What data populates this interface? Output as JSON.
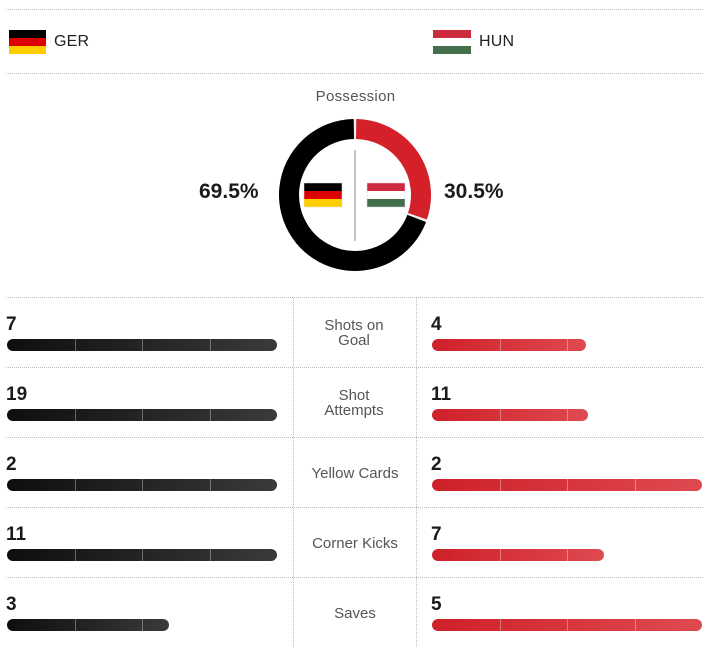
{
  "teams": {
    "home": {
      "name": "GER",
      "flag": "germany-flag",
      "colors": [
        "#000000",
        "#dd0000",
        "#ffce00"
      ]
    },
    "away": {
      "name": "HUN",
      "flag": "hungary-flag",
      "colors": [
        "#cd2a3e",
        "#ffffff",
        "#436f4d"
      ]
    }
  },
  "possession": {
    "title": "Possession",
    "home_pct": "69.5%",
    "away_pct": "30.5%",
    "home_value": 69.5,
    "away_value": 30.5,
    "home_color": "#000000",
    "away_color": "#d42129"
  },
  "stats": [
    {
      "label": "Shots on Goal",
      "home": "7",
      "away": "4",
      "home_fraction": 1.0,
      "away_fraction": 0.571
    },
    {
      "label": "Shot Attempts",
      "home": "19",
      "away": "11",
      "home_fraction": 1.0,
      "away_fraction": 0.579
    },
    {
      "label": "Yellow Cards",
      "home": "2",
      "away": "2",
      "home_fraction": 1.0,
      "away_fraction": 1.0
    },
    {
      "label": "Corner Kicks",
      "home": "11",
      "away": "7",
      "home_fraction": 1.0,
      "away_fraction": 0.636
    },
    {
      "label": "Saves",
      "home": "3",
      "away": "5",
      "home_fraction": 0.6,
      "away_fraction": 1.0
    }
  ]
}
